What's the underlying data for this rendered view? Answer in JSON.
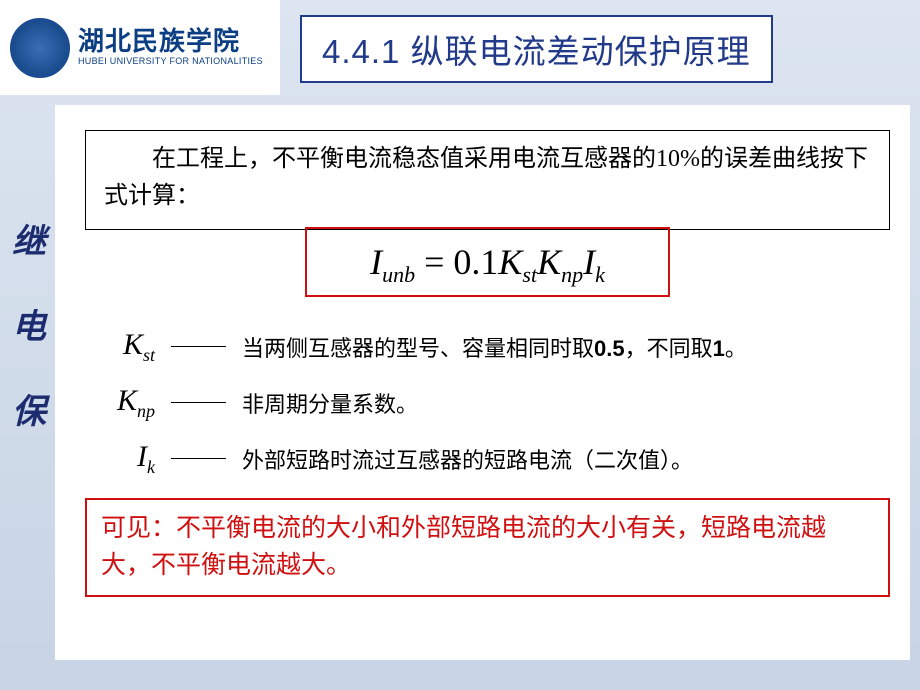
{
  "logo": {
    "cn": "湖北民族学院",
    "en": "HUBEI UNIVERSITY FOR NATIONALITIES"
  },
  "header": {
    "title": "4.4.1 纵联电流差动保护原理"
  },
  "side": {
    "c1": "继",
    "c2": "电",
    "c3": "保"
  },
  "intro": {
    "text": "在工程上，不平衡电流稳态值采用电流互感器的10%的误差曲线按下式计算："
  },
  "formula": {
    "lhs_I": "I",
    "lhs_sub": "unb",
    "eq": " = ",
    "coef": "0.1",
    "K1": "K",
    "K1_sub": "st",
    "K2": "K",
    "K2_sub": "np",
    "Ik": "I",
    "Ik_sub": "k"
  },
  "defs": {
    "kst": {
      "sym": "K",
      "sub": "st",
      "text_a": "当两侧互感器的型号、容量相同时取",
      "val_a": "0.5",
      "text_b": "，不同取",
      "val_b": "1",
      "text_c": "。"
    },
    "knp": {
      "sym": "K",
      "sub": "np",
      "text": "非周期分量系数。"
    },
    "ik": {
      "sym": "I",
      "sub": "k",
      "text": "外部短路时流过互感器的短路电流（二次值）。"
    }
  },
  "conclusion": {
    "text": "可见：不平衡电流的大小和外部短路电流的大小有关，短路电流越大，不平衡电流越大。"
  },
  "colors": {
    "accent_red": "#d01010",
    "title_blue": "#223a8a",
    "bg_top": "#dce5f0",
    "bg_bot": "#c8d4e5"
  }
}
